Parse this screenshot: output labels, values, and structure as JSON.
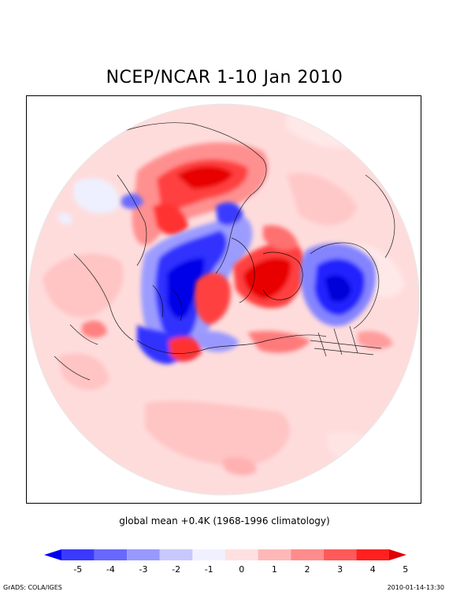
{
  "header": {
    "title": "NCEP/NCAR 1-10 Jan 2010"
  },
  "caption": {
    "text": "global mean +0.4K (1968-1996 climatology)"
  },
  "colorbar": {
    "labels": [
      "-5",
      "-4",
      "-3",
      "-2",
      "-1",
      "0",
      "1",
      "2",
      "3",
      "4",
      "5"
    ],
    "colors": [
      "#0000f0",
      "#3a3aff",
      "#6868ff",
      "#9898ff",
      "#c8c8ff",
      "#f0f0ff",
      "#ffe0e0",
      "#ffb8b8",
      "#ff8c8c",
      "#ff5a5a",
      "#ff2020",
      "#e00000"
    ]
  },
  "footer": {
    "left": "GrADS: COLA/IGES",
    "right": "2010-01-14-13:30"
  }
}
